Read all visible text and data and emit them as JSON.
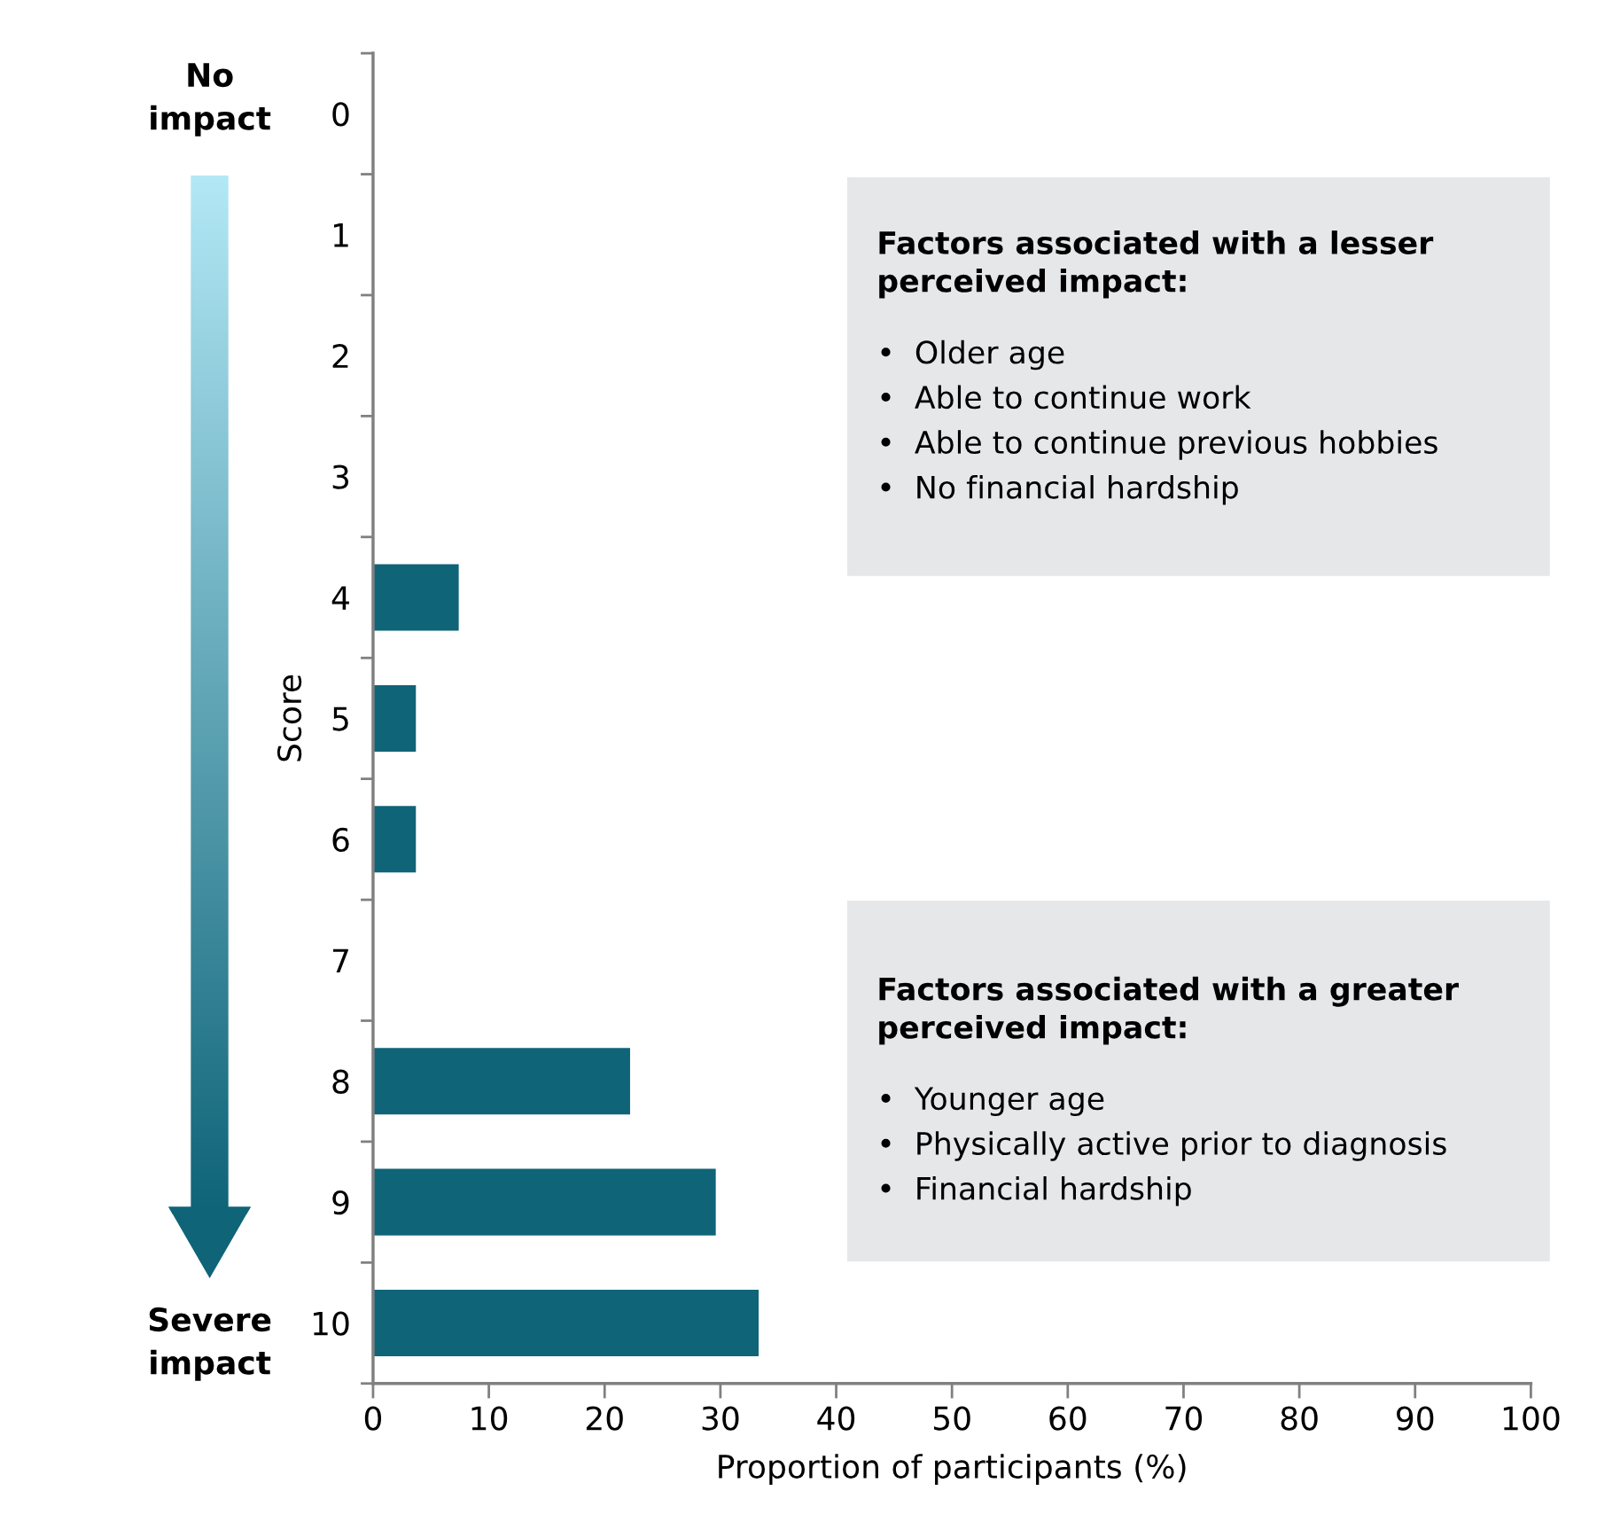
{
  "chart_data": {
    "type": "bar",
    "orientation": "horizontal",
    "categories": [
      "0",
      "1",
      "2",
      "3",
      "4",
      "5",
      "6",
      "7",
      "8",
      "9",
      "10"
    ],
    "values": [
      0,
      0,
      0,
      0,
      7.4,
      3.7,
      3.7,
      0,
      22.2,
      29.6,
      33.3
    ],
    "color": "#0f6478",
    "xlim": [
      0,
      100
    ],
    "xticks": [
      0,
      10,
      20,
      30,
      40,
      50,
      60,
      70,
      80,
      90,
      100
    ],
    "xlabel": "Proportion of participants (%)",
    "ylabel": "Score",
    "grid": false,
    "annotations": [
      "No\nimpact",
      "Severe\nimpact",
      "Factors associated with a lesser\nperceived impact:\n•  Older age\n•  Able to continue work\n•  Able to continue previous hobbies\n•  No financial hardship",
      "Factors associated with a greater\nperceived impact:\n•  Younger age\n•  Physically active prior to diagnosis\n•  Financial hardship"
    ]
  }
}
